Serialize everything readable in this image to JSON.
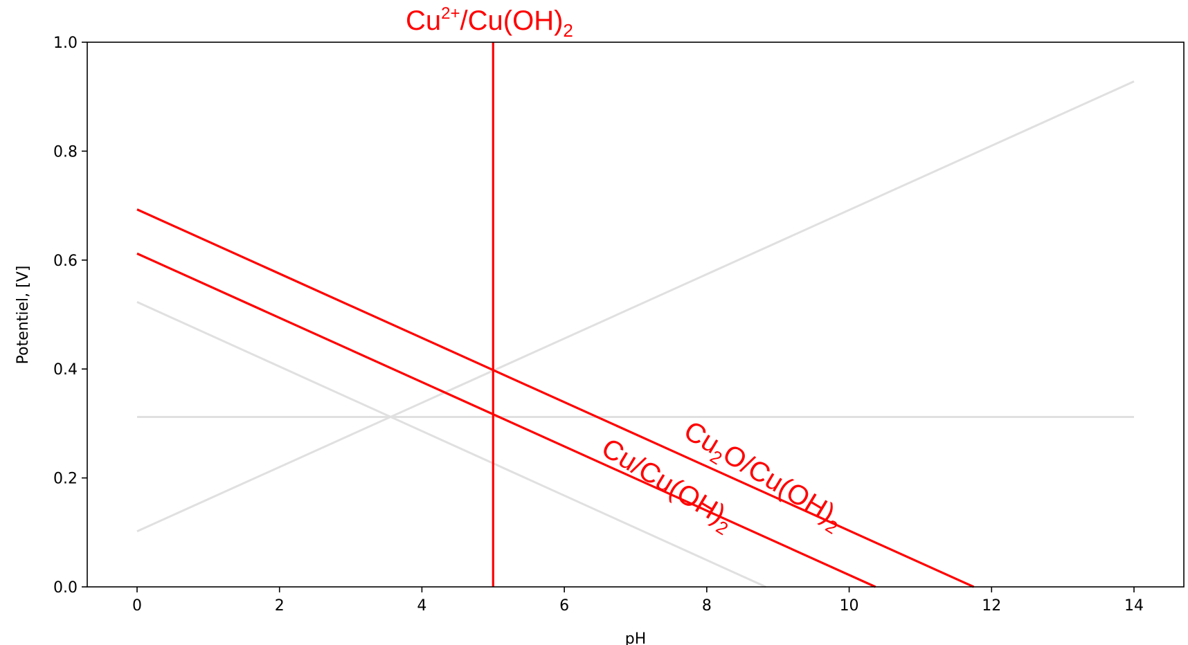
{
  "chart_data": {
    "type": "line",
    "title": "",
    "xlabel": "pH",
    "ylabel": "Potentiel, [V]",
    "xlim": [
      -0.7,
      14.7
    ],
    "ylim": [
      0.0,
      1.0
    ],
    "xticks": [
      0,
      2,
      4,
      6,
      8,
      10,
      12,
      14
    ],
    "yticks": [
      0.0,
      0.2,
      0.4,
      0.6,
      0.8,
      1.0
    ],
    "x_tick_labels": [
      "0",
      "2",
      "4",
      "6",
      "8",
      "10",
      "12",
      "14"
    ],
    "y_tick_labels": [
      "0.0",
      "0.2",
      "0.4",
      "0.6",
      "0.8",
      "1.0"
    ],
    "grid": false,
    "legend": "none",
    "colors": {
      "highlight": "#ff0000",
      "background_lines": "#e0e0e0",
      "axis": "#000000"
    },
    "series": [
      {
        "color": "#e0e0e0",
        "points": [
          [
            0,
            0.523
          ],
          [
            8.83,
            0.0
          ]
        ]
      },
      {
        "color": "#e0e0e0",
        "points": [
          [
            0,
            0.102
          ],
          [
            14,
            0.928
          ]
        ]
      },
      {
        "color": "#e0e0e0",
        "points": [
          [
            0,
            0.312
          ],
          [
            14,
            0.312
          ]
        ]
      },
      {
        "color": "#ff0000",
        "points": [
          [
            0,
            0.693
          ],
          [
            11.75,
            0.0
          ]
        ]
      },
      {
        "color": "#ff0000",
        "points": [
          [
            0,
            0.612
          ],
          [
            10.37,
            0.0
          ]
        ]
      },
      {
        "color": "#ff0000",
        "points": [
          [
            5,
            0.0
          ],
          [
            5,
            1.0
          ]
        ]
      }
    ],
    "annotations": [
      {
        "base": "Cu",
        "sup": "2+",
        "mid": "/Cu(OH)",
        "sub": "2",
        "tail": "",
        "color": "#ff0000"
      },
      {
        "base": "Cu",
        "sup": "",
        "mid": "",
        "sub": "2",
        "tail": "O/Cu(OH)",
        "sub2": "2",
        "color": "#ff0000"
      },
      {
        "base": "Cu/Cu(OH)",
        "sup": "",
        "mid": "",
        "sub": "2",
        "tail": "",
        "color": "#ff0000"
      }
    ]
  }
}
